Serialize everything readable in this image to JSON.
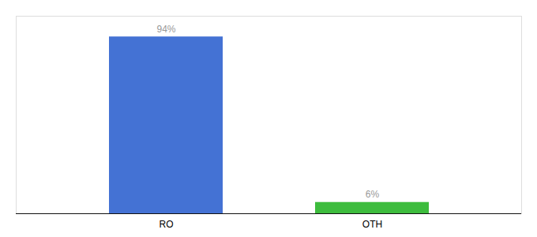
{
  "chart_data": {
    "type": "bar",
    "categories": [
      "RO",
      "OTH"
    ],
    "values": [
      94,
      6
    ],
    "value_labels": [
      "94%",
      "6%"
    ],
    "colors": [
      "#4472d4",
      "#3dbc3d"
    ],
    "ylim": [
      0,
      105
    ],
    "data_labels": true,
    "tick_labels": "x"
  }
}
